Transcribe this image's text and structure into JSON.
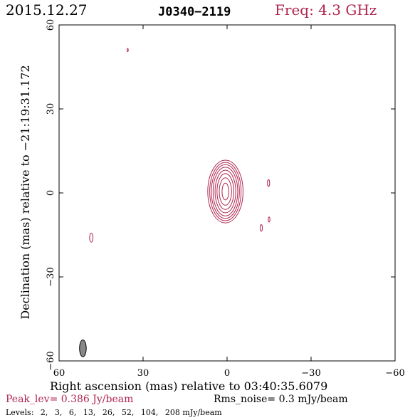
{
  "header": {
    "date": "2015.12.27",
    "source": "J0340−2119",
    "freq": "Freq: 4.3 GHz"
  },
  "footer": {
    "peak": "Peak_lev=  0.386 Jy/beam",
    "rms": "Rms_noise=   0.3 mJy/beam",
    "levels_label": "Levels:",
    "levels": [
      "2,",
      "3,",
      "6,",
      "13,",
      "26,",
      "52,",
      "104,",
      "208 mJy/beam"
    ]
  },
  "colors": {
    "contour": "#b0264f",
    "beam_fill": "#888888",
    "axes": "#000000"
  },
  "chart_data": {
    "type": "contour",
    "title": "J0340−2119",
    "xlabel": "Right ascension (mas) relative to 03:40:35.6079",
    "ylabel": "Declination (mas) relative to −21:19:31.172",
    "xlim": [
      60,
      -60
    ],
    "ylim": [
      -60,
      60
    ],
    "xticks": [
      60,
      30,
      0,
      -30,
      -60
    ],
    "yticks": [
      60,
      30,
      0,
      -30,
      -60
    ],
    "xtick_labels": [
      "60",
      "30",
      "0",
      "−30",
      "−60"
    ],
    "ytick_labels": [
      "60",
      "30",
      "0",
      "−30",
      "−60"
    ],
    "peak_jy_per_beam": 0.386,
    "rms_mjy_per_beam": 0.3,
    "levels_mjy_per_beam": [
      2,
      3,
      6,
      13,
      26,
      52,
      104,
      208
    ],
    "core": {
      "ra": 0.6,
      "dec": 0.5,
      "contours": [
        {
          "level": 2,
          "rx": 6.3,
          "ry": 11.2
        },
        {
          "level": 3,
          "rx": 5.6,
          "ry": 10.4
        },
        {
          "level": 6,
          "rx": 5.0,
          "ry": 9.6
        },
        {
          "level": 13,
          "rx": 4.4,
          "ry": 8.7
        },
        {
          "level": 26,
          "rx": 3.7,
          "ry": 7.6
        },
        {
          "level": 52,
          "rx": 3.0,
          "ry": 6.4
        },
        {
          "level": 104,
          "rx": 2.2,
          "ry": 4.9
        },
        {
          "level": 208,
          "rx": 1.2,
          "ry": 3.0
        }
      ]
    },
    "features": [
      {
        "ra": 35.5,
        "dec": 51.0,
        "rx": 0.2,
        "ry": 0.6
      },
      {
        "ra": 48.5,
        "dec": -16.0,
        "rx": 0.6,
        "ry": 1.6
      },
      {
        "ra": -14.8,
        "dec": 3.5,
        "rx": 0.4,
        "ry": 1.2
      },
      {
        "ra": -15.0,
        "dec": -9.5,
        "rx": 0.3,
        "ry": 0.9
      },
      {
        "ra": -12.2,
        "dec": -12.5,
        "rx": 0.4,
        "ry": 1.2
      }
    ],
    "beam": {
      "ra": 51.5,
      "dec": -55.5,
      "major_mas": 6.0,
      "minor_mas": 2.4,
      "pa_deg": 0
    }
  }
}
